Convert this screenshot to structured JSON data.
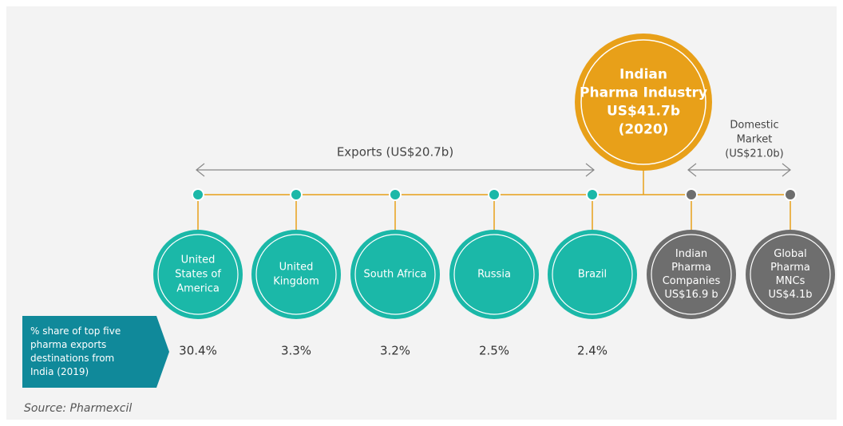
{
  "hub": {
    "lines": [
      "Indian",
      "Pharma Industry",
      "US$41.7b",
      "(2020)"
    ]
  },
  "exports": {
    "label": "Exports (US$20.7b)",
    "destinations": [
      {
        "lines": [
          "United",
          "States of",
          "America"
        ],
        "share": "30.4%"
      },
      {
        "lines": [
          "United",
          "Kingdom"
        ],
        "share": "3.3%"
      },
      {
        "lines": [
          "South Africa"
        ],
        "share": "3.2%"
      },
      {
        "lines": [
          "Russia"
        ],
        "share": "2.5%"
      },
      {
        "lines": [
          "Brazil"
        ],
        "share": "2.4%"
      }
    ]
  },
  "domestic": {
    "label_lines": [
      "Domestic",
      "Market",
      "(US$21.0b)"
    ],
    "segments": [
      {
        "lines": [
          "Indian",
          "Pharma",
          "Companies",
          "US$16.9 b"
        ]
      },
      {
        "lines": [
          "Global",
          "Pharma",
          "MNCs",
          "US$4.1b"
        ]
      }
    ]
  },
  "legend_box": {
    "lines": [
      "% share of top five",
      "pharma exports",
      "destinations from",
      "India (2019)"
    ]
  },
  "source": "Source: Pharmexcil"
}
